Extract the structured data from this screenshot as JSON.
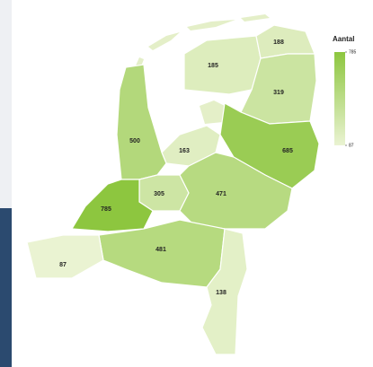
{
  "chart_data": {
    "type": "choropleth",
    "values": [
      185,
      188,
      319,
      163,
      685,
      500,
      305,
      471,
      785,
      481,
      87,
      138
    ],
    "colorbar": {
      "title": "Aantal",
      "lim": [
        87,
        785
      ],
      "ticks": [
        87,
        785
      ]
    },
    "color_low": "#eaf3d2",
    "color_high": "#8dc63f"
  }
}
